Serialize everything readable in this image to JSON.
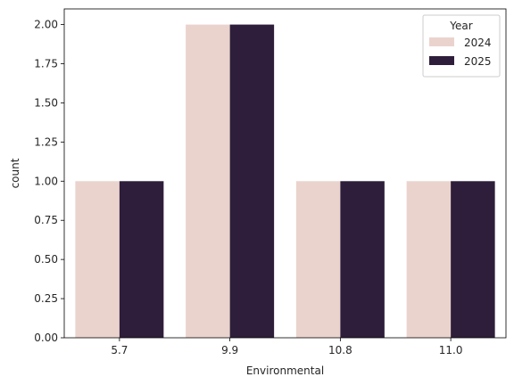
{
  "chart_data": {
    "type": "bar",
    "categories": [
      "5.7",
      "9.9",
      "10.8",
      "11.0"
    ],
    "series": [
      {
        "name": "2024",
        "values": [
          1,
          2,
          1,
          1
        ],
        "color": "#ebd3cd"
      },
      {
        "name": "2025",
        "values": [
          1,
          2,
          1,
          1
        ],
        "color": "#2e1e3b"
      }
    ],
    "xlabel": "Environmental",
    "ylabel": "count",
    "ylim": [
      0,
      2.1
    ],
    "yticks": [
      "0.00",
      "0.25",
      "0.50",
      "0.75",
      "1.00",
      "1.25",
      "1.50",
      "1.75",
      "2.00"
    ],
    "legend": {
      "title": "Year",
      "position": "top-right"
    },
    "grid": false
  }
}
